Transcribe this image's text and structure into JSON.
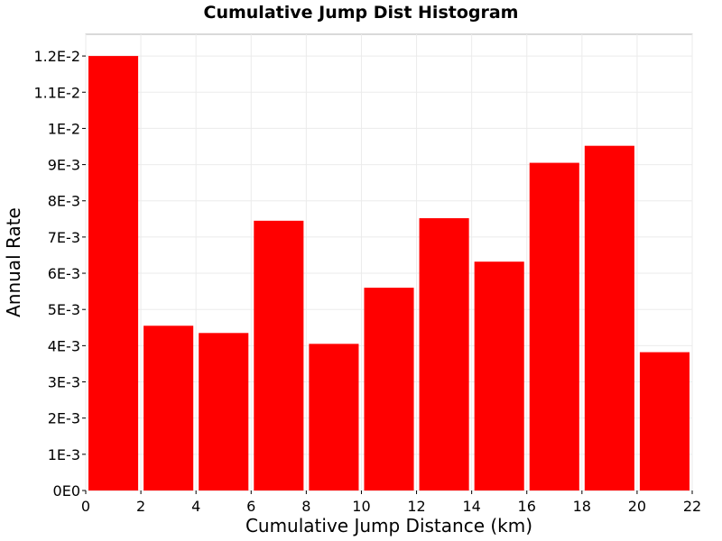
{
  "chart_data": {
    "type": "bar",
    "title": "Cumulative Jump Dist Histogram",
    "xlabel": "Cumulative Jump Distance (km)",
    "ylabel": "Annual Rate",
    "bin_width": 2,
    "x": [
      1,
      3,
      5,
      7,
      9,
      11,
      13,
      15,
      17,
      19,
      21
    ],
    "values": [
      0.012,
      0.00455,
      0.00435,
      0.00745,
      0.00405,
      0.0056,
      0.00752,
      0.00632,
      0.00905,
      0.00952,
      0.00382
    ],
    "xlim": [
      0,
      22
    ],
    "ylim": [
      0,
      0.0126
    ],
    "x_ticks": [
      0,
      2,
      4,
      6,
      8,
      10,
      12,
      14,
      16,
      18,
      20,
      22
    ],
    "y_ticks": [
      0,
      0.001,
      0.002,
      0.003,
      0.004,
      0.005,
      0.006,
      0.007,
      0.008,
      0.009,
      0.01,
      0.011,
      0.012
    ],
    "y_tick_labels": [
      "0E0",
      "1E-3",
      "2E-3",
      "3E-3",
      "4E-3",
      "5E-3",
      "6E-3",
      "7E-3",
      "8E-3",
      "9E-3",
      "1E-2",
      "1.1E-2",
      "1.2E-2"
    ],
    "bar_color": "#ff0000",
    "grid": true,
    "legend": "none"
  }
}
